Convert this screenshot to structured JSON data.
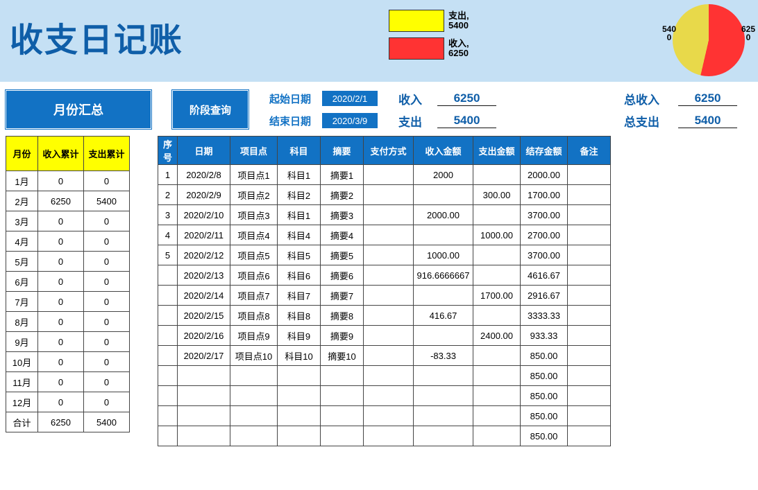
{
  "title": "收支日记账",
  "colors": {
    "header_bg": "#c5e0f4",
    "primary_blue": "#1272c4",
    "text_blue": "#0f5ea8",
    "yellow": "#ffff00",
    "red": "#ff3333",
    "pie_yellow": "#e8d94a"
  },
  "legend": {
    "expense": {
      "label": "支出,",
      "value": "5400",
      "color": "#ffff00"
    },
    "income": {
      "label": "收入,",
      "value": "6250",
      "color": "#ff3333"
    }
  },
  "pie": {
    "expense_value": "5400",
    "income_value": "6250",
    "expense_color": "#e8d94a",
    "income_color": "#ff3333",
    "income_degrees": 193,
    "expense_degrees": 167
  },
  "months_label": "月份汇总",
  "phase_label": "阶段查询",
  "dates": {
    "start_label": "起始日期",
    "end_label": "结束日期",
    "start_value": "2020/2/1",
    "end_value": "2020/3/9"
  },
  "period_sum": {
    "income_label": "收入",
    "expense_label": "支出",
    "income_value": "6250",
    "expense_value": "5400"
  },
  "total_sum": {
    "income_label": "总收入",
    "expense_label": "总支出",
    "income_value": "6250",
    "expense_value": "5400"
  },
  "left_table": {
    "headers": [
      "月份",
      "收入累计",
      "支出累计"
    ],
    "rows": [
      [
        "1月",
        "0",
        "0"
      ],
      [
        "2月",
        "6250",
        "5400"
      ],
      [
        "3月",
        "0",
        "0"
      ],
      [
        "4月",
        "0",
        "0"
      ],
      [
        "5月",
        "0",
        "0"
      ],
      [
        "6月",
        "0",
        "0"
      ],
      [
        "7月",
        "0",
        "0"
      ],
      [
        "8月",
        "0",
        "0"
      ],
      [
        "9月",
        "0",
        "0"
      ],
      [
        "10月",
        "0",
        "0"
      ],
      [
        "11月",
        "0",
        "0"
      ],
      [
        "12月",
        "0",
        "0"
      ],
      [
        "合计",
        "6250",
        "5400"
      ]
    ]
  },
  "right_table": {
    "headers": [
      "序号",
      "日期",
      "项目点",
      "科目",
      "摘要",
      "支付方式",
      "收入金额",
      "支出金额",
      "结存金额",
      "备注"
    ],
    "rows": [
      [
        "1",
        "2020/2/8",
        "项目点1",
        "科目1",
        "摘要1",
        "",
        "2000",
        "",
        "2000.00",
        ""
      ],
      [
        "2",
        "2020/2/9",
        "项目点2",
        "科目2",
        "摘要2",
        "",
        "",
        "300.00",
        "1700.00",
        ""
      ],
      [
        "3",
        "2020/2/10",
        "项目点3",
        "科目1",
        "摘要3",
        "",
        "2000.00",
        "",
        "3700.00",
        ""
      ],
      [
        "4",
        "2020/2/11",
        "项目点4",
        "科目4",
        "摘要4",
        "",
        "",
        "1000.00",
        "2700.00",
        ""
      ],
      [
        "5",
        "2020/2/12",
        "项目点5",
        "科目5",
        "摘要5",
        "",
        "1000.00",
        "",
        "3700.00",
        ""
      ],
      [
        "",
        "2020/2/13",
        "项目点6",
        "科目6",
        "摘要6",
        "",
        "916.6666667",
        "",
        "4616.67",
        ""
      ],
      [
        "",
        "2020/2/14",
        "项目点7",
        "科目7",
        "摘要7",
        "",
        "",
        "1700.00",
        "2916.67",
        ""
      ],
      [
        "",
        "2020/2/15",
        "项目点8",
        "科目8",
        "摘要8",
        "",
        "416.67",
        "",
        "3333.33",
        ""
      ],
      [
        "",
        "2020/2/16",
        "项目点9",
        "科目9",
        "摘要9",
        "",
        "",
        "2400.00",
        "933.33",
        ""
      ],
      [
        "",
        "2020/2/17",
        "项目点10",
        "科目10",
        "摘要10",
        "",
        "-83.33",
        "",
        "850.00",
        ""
      ],
      [
        "",
        "",
        "",
        "",
        "",
        "",
        "",
        "",
        "850.00",
        ""
      ],
      [
        "",
        "",
        "",
        "",
        "",
        "",
        "",
        "",
        "850.00",
        ""
      ],
      [
        "",
        "",
        "",
        "",
        "",
        "",
        "",
        "",
        "850.00",
        ""
      ],
      [
        "",
        "",
        "",
        "",
        "",
        "",
        "",
        "",
        "850.00",
        ""
      ]
    ]
  }
}
